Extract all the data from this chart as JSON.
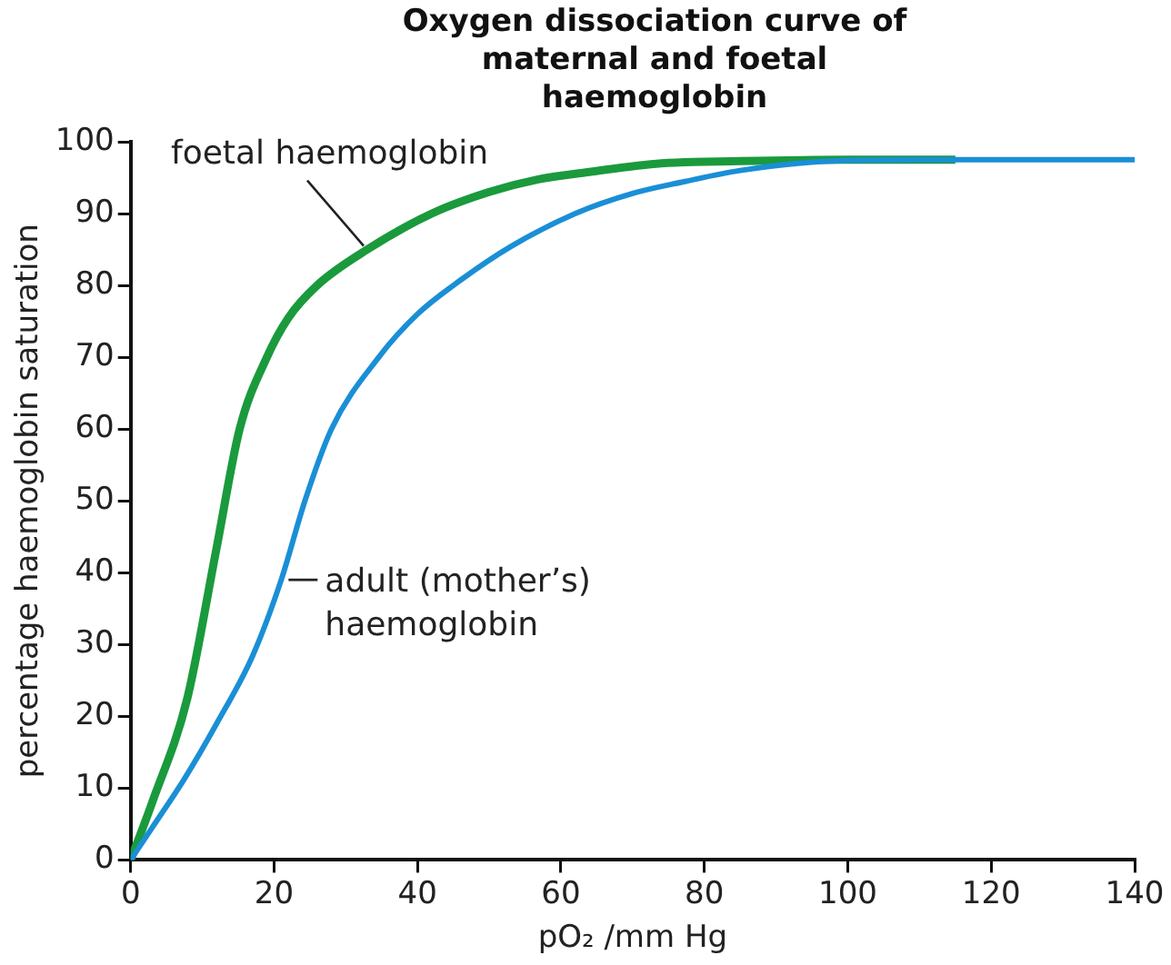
{
  "chart_data": {
    "type": "line",
    "title": "Oxygen dissociation curve of maternal and foetal haemoglobin",
    "xlabel": "pO₂ /mm Hg",
    "ylabel": "percentage haemoglobin saturation",
    "xlim": [
      0,
      140
    ],
    "xticks": [
      0,
      20,
      40,
      60,
      80,
      100,
      120,
      140
    ],
    "ylim": [
      0,
      100
    ],
    "yticks": [
      0,
      10,
      20,
      30,
      40,
      50,
      60,
      70,
      80,
      90,
      100
    ],
    "grid": false,
    "legend": false,
    "marker": "none",
    "line_style": "solid",
    "series": [
      {
        "name": "foetal haemoglobin",
        "color": "#1a9a3c",
        "x": [
          0,
          3,
          7.9,
          11.9,
          15.2,
          19,
          22,
          26,
          33,
          42,
          50,
          57,
          64,
          74,
          85,
          100,
          115
        ],
        "values": [
          0,
          8,
          22.5,
          43,
          60,
          70,
          75.5,
          80,
          85,
          90,
          93,
          94.8,
          95.8,
          97,
          97.3,
          97.5,
          97.5
        ]
      },
      {
        "name": "adult (mother’s) haemoglobin",
        "color": "#1a8fd6",
        "x": [
          0,
          3,
          7.5,
          12,
          17,
          21,
          24.3,
          28,
          34.6,
          40,
          45,
          53,
          62,
          70,
          77,
          85,
          100,
          115,
          130,
          140
        ],
        "values": [
          0,
          4.5,
          11.3,
          19,
          28.4,
          39,
          50,
          60,
          70,
          76,
          80,
          85.4,
          90,
          92.8,
          94.4,
          96,
          97.4,
          97.5,
          97.5,
          97.5
        ]
      }
    ]
  }
}
